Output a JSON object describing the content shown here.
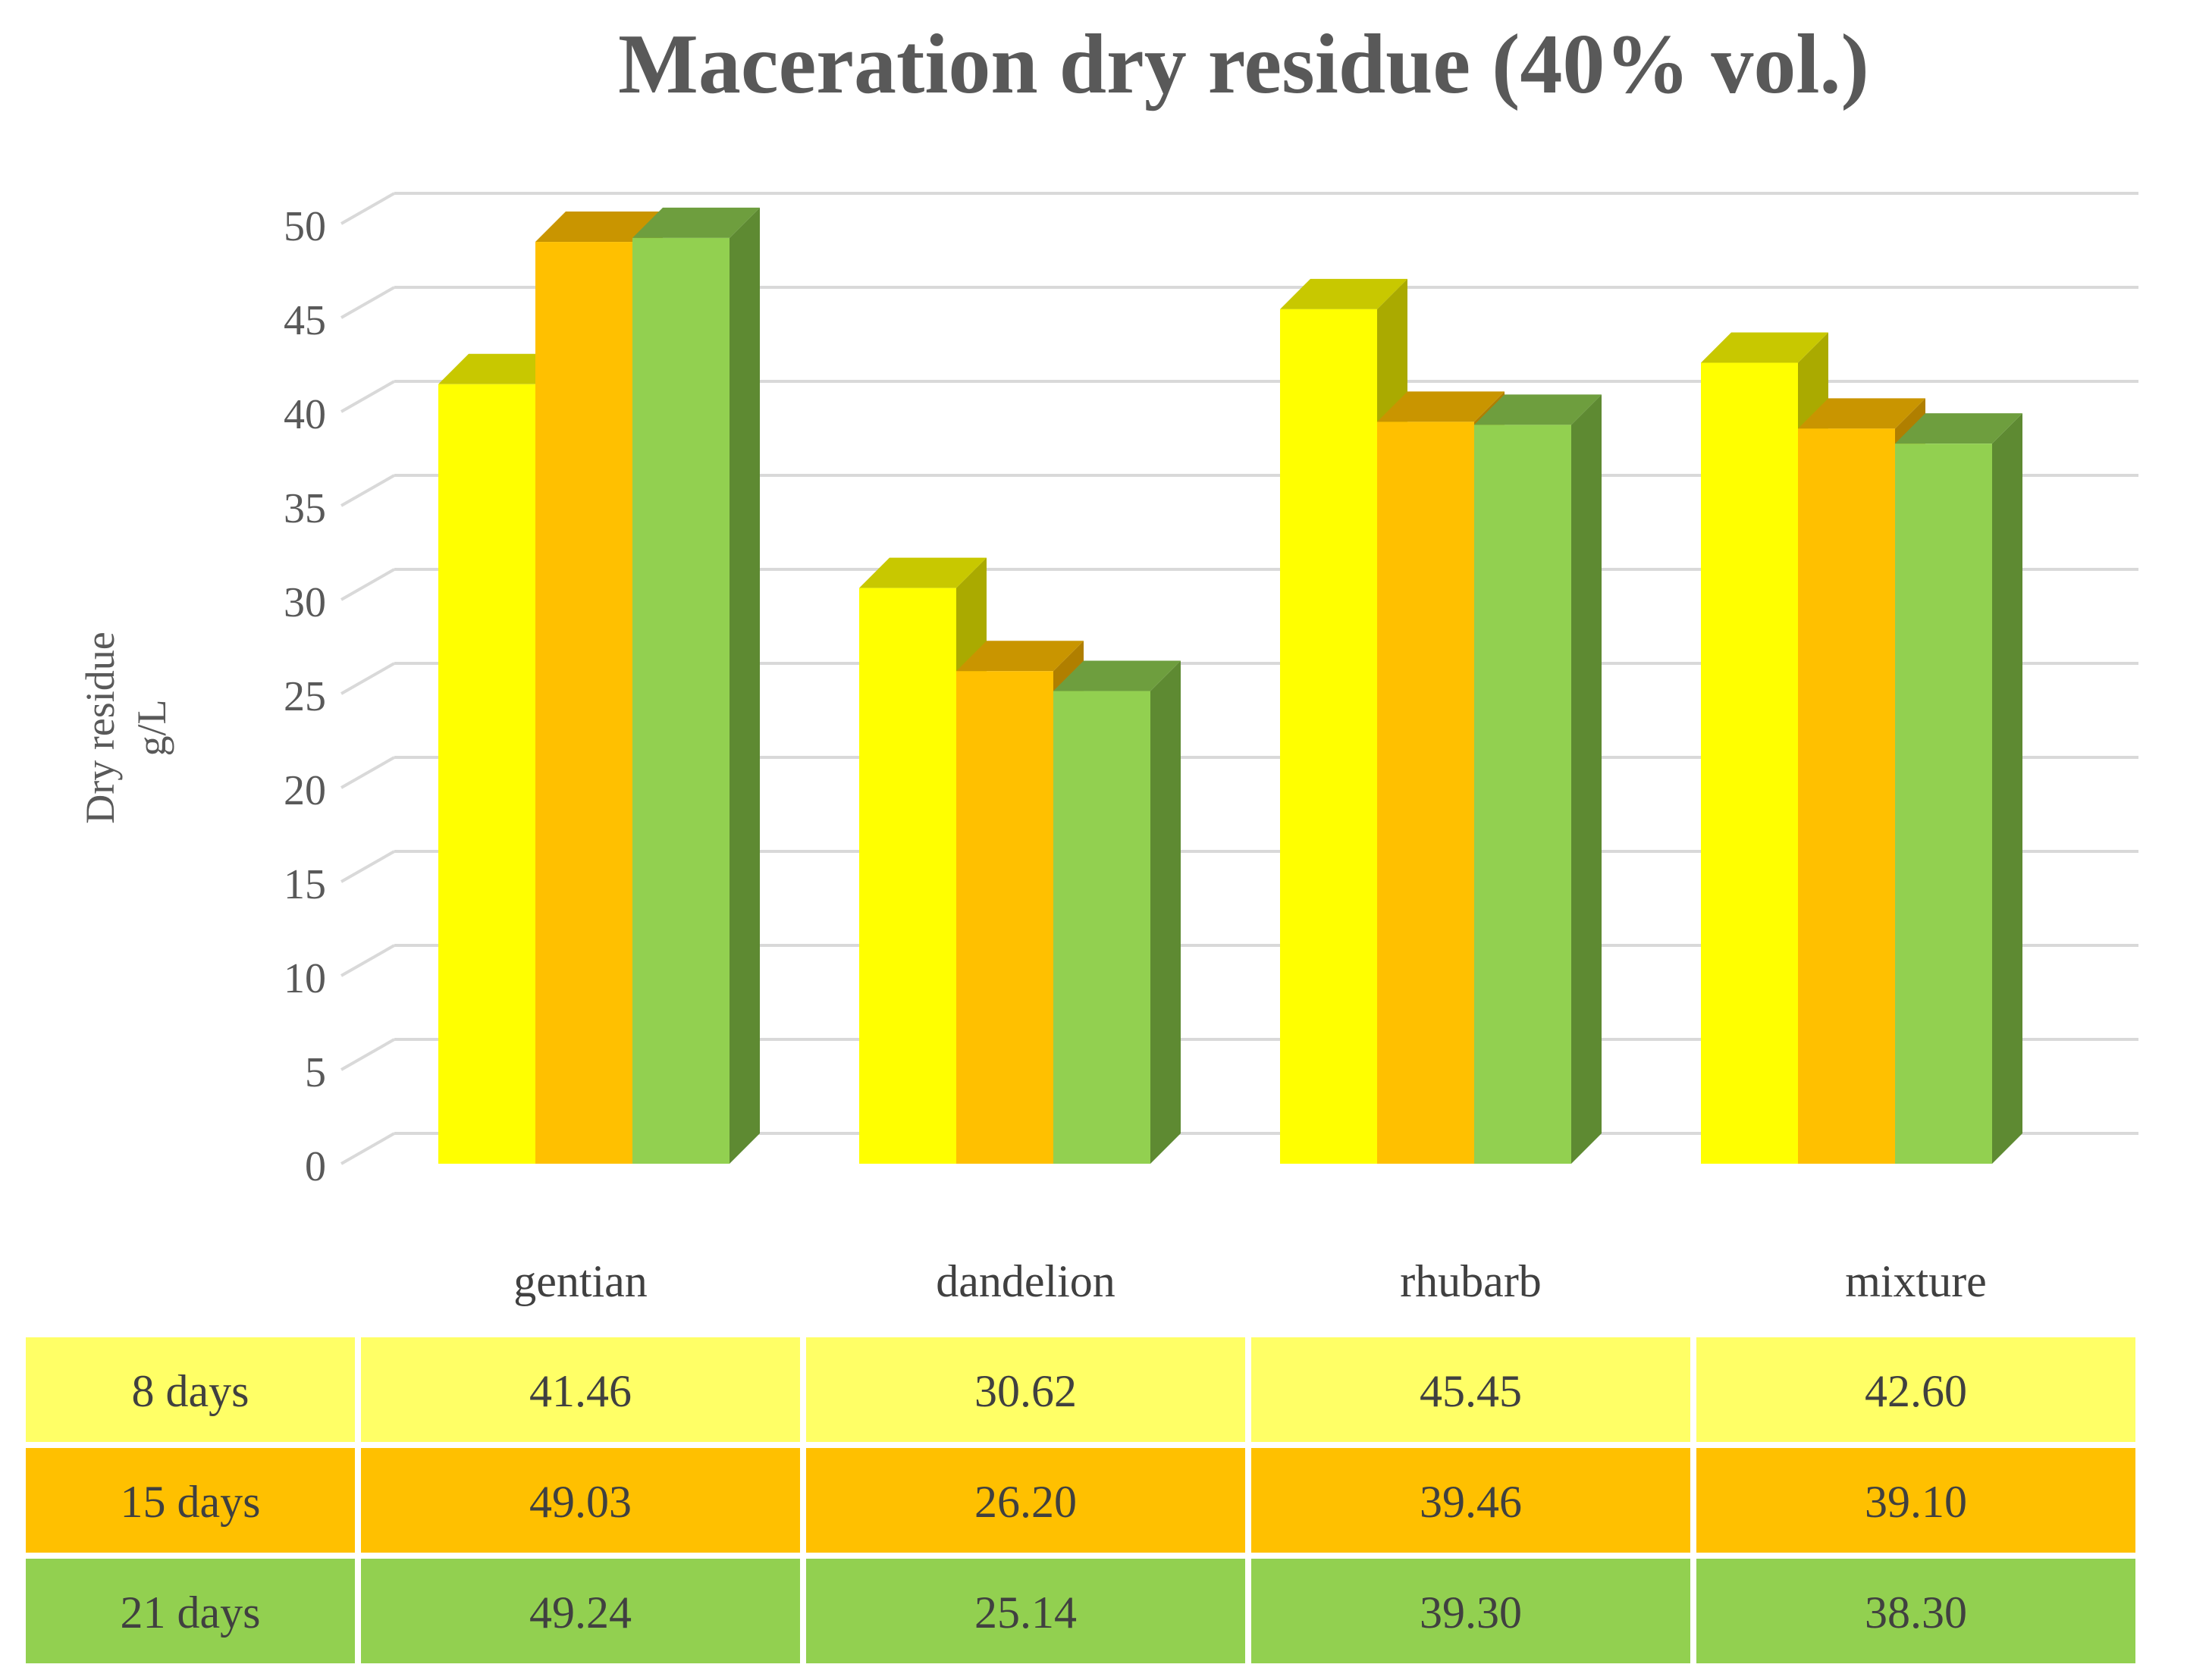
{
  "chart_data": {
    "type": "bar",
    "style": "3d-clustered-column-with-data-table",
    "title": "Maceration dry residue (40% vol.)",
    "ylabel_line1": "Dry residue",
    "ylabel_line2": "g/L",
    "xlabel": "",
    "ylim": [
      0,
      50
    ],
    "yticks": [
      0,
      5,
      10,
      15,
      20,
      25,
      30,
      35,
      40,
      45,
      50
    ],
    "ytick_labels": [
      "0",
      "5",
      "10",
      "15",
      "20",
      "25",
      "30",
      "35",
      "40",
      "45",
      "50"
    ],
    "grid": true,
    "categories": [
      "gentian",
      "dandelion",
      "rhubarb",
      "mixture"
    ],
    "series": [
      {
        "name": "8 days",
        "values": [
          41.46,
          30.62,
          45.45,
          42.6
        ],
        "value_labels": [
          "41.46",
          "30.62",
          "45.45",
          "42.60"
        ],
        "color": "#FFFF00",
        "side_color": "#AAAA00",
        "top_color": "#C8C800",
        "cell_color": "#FFFF66"
      },
      {
        "name": "15 days",
        "values": [
          49.03,
          26.2,
          39.46,
          39.1
        ],
        "value_labels": [
          "49.03",
          "26.20",
          "39.46",
          "39.10"
        ],
        "color": "#FFC000",
        "side_color": "#B07F00",
        "top_color": "#C99500",
        "cell_color": "#FFC000"
      },
      {
        "name": "21 days",
        "values": [
          49.24,
          25.14,
          39.3,
          38.3
        ],
        "value_labels": [
          "49.24",
          "25.14",
          "39.30",
          "38.30"
        ],
        "color": "#92D050",
        "side_color": "#5E8A32",
        "top_color": "#6E9E3E",
        "cell_color": "#92D050"
      }
    ],
    "data_table": true
  }
}
